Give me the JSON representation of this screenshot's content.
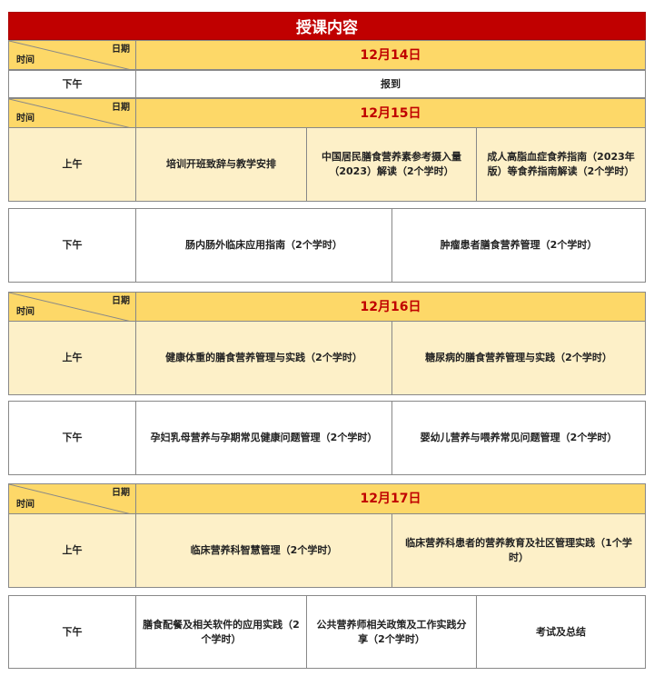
{
  "title": "授课内容",
  "header": {
    "date_label": "日期",
    "time_label": "时间"
  },
  "days": [
    {
      "date": "12月14日",
      "pm_label": "下午",
      "pm": [
        "报到"
      ]
    },
    {
      "date": "12月15日",
      "am_label": "上午",
      "am": [
        "培训开班致辞与教学安排",
        "中国居民膳食营养素参考摄入量（2023）解读（2个学时）",
        "成人高脂血症食养指南（2023年版）等食养指南解读（2个学时）"
      ],
      "pm_label": "下午",
      "pm": [
        "肠内肠外临床应用指南（2个学时）",
        "肿瘤患者膳食营养管理（2个学时）"
      ]
    },
    {
      "date": "12月16日",
      "am_label": "上午",
      "am": [
        "健康体重的膳食营养管理与实践（2个学时）",
        "糖尿病的膳食营养管理与实践（2个学时）"
      ],
      "pm_label": "下午",
      "pm": [
        "孕妇乳母营养与孕期常见健康问题管理（2个学时）",
        "婴幼儿营养与喂养常见问题管理（2个学时）"
      ]
    },
    {
      "date": "12月17日",
      "am_label": "上午",
      "am": [
        "临床营养科智慧管理（2个学时）",
        "临床营养科患者的营养教育及社区管理实践（1个学时）"
      ],
      "pm_label": "下午",
      "pm": [
        "膳食配餐及相关软件的应用实践（2个学时）",
        "公共营养师相关政策及工作实践分享（2个学时）",
        "考试及总结"
      ]
    }
  ],
  "colors": {
    "title_bg": "#c00000",
    "header_bg": "#fdd868",
    "am_bg": "#fdf0c8",
    "date_text": "#c00000"
  }
}
